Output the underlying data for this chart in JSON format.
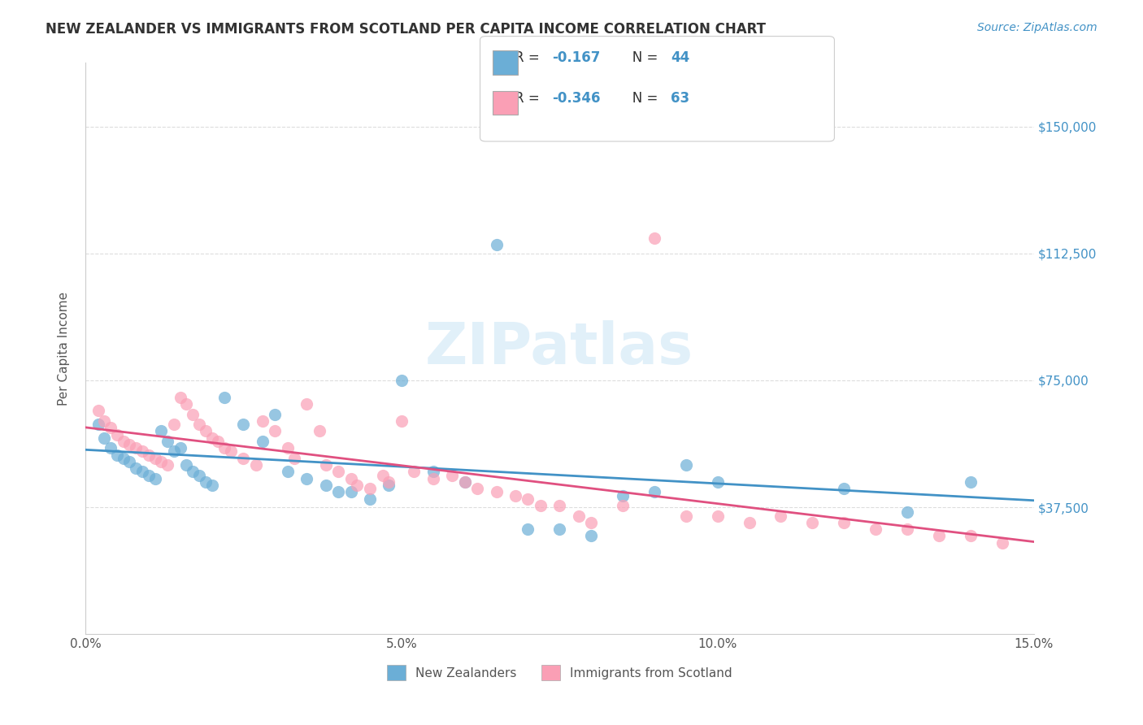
{
  "title": "NEW ZEALANDER VS IMMIGRANTS FROM SCOTLAND PER CAPITA INCOME CORRELATION CHART",
  "source": "Source: ZipAtlas.com",
  "xlabel": "",
  "ylabel": "Per Capita Income",
  "xlim": [
    0,
    0.15
  ],
  "ylim": [
    0,
    168750
  ],
  "yticks": [
    0,
    37500,
    75000,
    112500,
    150000
  ],
  "ytick_labels": [
    "",
    "$37,500",
    "$75,000",
    "$112,500",
    "$150,000"
  ],
  "xticks": [
    0.0,
    0.05,
    0.1,
    0.15
  ],
  "xtick_labels": [
    "0.0%",
    "5.0%",
    "10.0%",
    "15.0%"
  ],
  "blue_color": "#6baed6",
  "pink_color": "#fa9fb5",
  "blue_line_color": "#4292c6",
  "pink_line_color": "#e05080",
  "blue_R": -0.167,
  "blue_N": 44,
  "pink_R": -0.346,
  "pink_N": 63,
  "axis_label_color": "#4292c6",
  "watermark": "ZIPatlas",
  "background_color": "#ffffff",
  "grid_color": "#dddddd",
  "title_color": "#333333",
  "blue_x": [
    0.002,
    0.003,
    0.004,
    0.005,
    0.006,
    0.007,
    0.008,
    0.009,
    0.01,
    0.011,
    0.012,
    0.013,
    0.014,
    0.015,
    0.016,
    0.017,
    0.018,
    0.019,
    0.02,
    0.022,
    0.025,
    0.028,
    0.03,
    0.032,
    0.035,
    0.038,
    0.04,
    0.042,
    0.045,
    0.048,
    0.05,
    0.055,
    0.06,
    0.065,
    0.07,
    0.075,
    0.08,
    0.085,
    0.09,
    0.095,
    0.1,
    0.12,
    0.13,
    0.14
  ],
  "blue_y": [
    62000,
    58000,
    55000,
    53000,
    52000,
    51000,
    49000,
    48000,
    47000,
    46000,
    60000,
    57000,
    54000,
    55000,
    50000,
    48000,
    47000,
    45000,
    44000,
    70000,
    62000,
    57000,
    65000,
    48000,
    46000,
    44000,
    42000,
    42000,
    40000,
    44000,
    75000,
    48000,
    45000,
    115000,
    31000,
    31000,
    29000,
    41000,
    42000,
    50000,
    45000,
    43000,
    36000,
    45000
  ],
  "pink_x": [
    0.002,
    0.003,
    0.004,
    0.005,
    0.006,
    0.007,
    0.008,
    0.009,
    0.01,
    0.011,
    0.012,
    0.013,
    0.014,
    0.015,
    0.016,
    0.017,
    0.018,
    0.019,
    0.02,
    0.021,
    0.022,
    0.023,
    0.025,
    0.027,
    0.028,
    0.03,
    0.032,
    0.033,
    0.035,
    0.037,
    0.038,
    0.04,
    0.042,
    0.043,
    0.045,
    0.047,
    0.048,
    0.05,
    0.052,
    0.055,
    0.058,
    0.06,
    0.062,
    0.065,
    0.068,
    0.07,
    0.072,
    0.075,
    0.078,
    0.08,
    0.085,
    0.09,
    0.095,
    0.1,
    0.105,
    0.11,
    0.115,
    0.12,
    0.125,
    0.13,
    0.135,
    0.14,
    0.145
  ],
  "pink_y": [
    66000,
    63000,
    61000,
    59000,
    57000,
    56000,
    55000,
    54000,
    53000,
    52000,
    51000,
    50000,
    62000,
    70000,
    68000,
    65000,
    62000,
    60000,
    58000,
    57000,
    55000,
    54000,
    52000,
    50000,
    63000,
    60000,
    55000,
    52000,
    68000,
    60000,
    50000,
    48000,
    46000,
    44000,
    43000,
    47000,
    45000,
    63000,
    48000,
    46000,
    47000,
    45000,
    43000,
    42000,
    41000,
    40000,
    38000,
    38000,
    35000,
    33000,
    38000,
    117000,
    35000,
    35000,
    33000,
    35000,
    33000,
    33000,
    31000,
    31000,
    29000,
    29000,
    27000
  ]
}
